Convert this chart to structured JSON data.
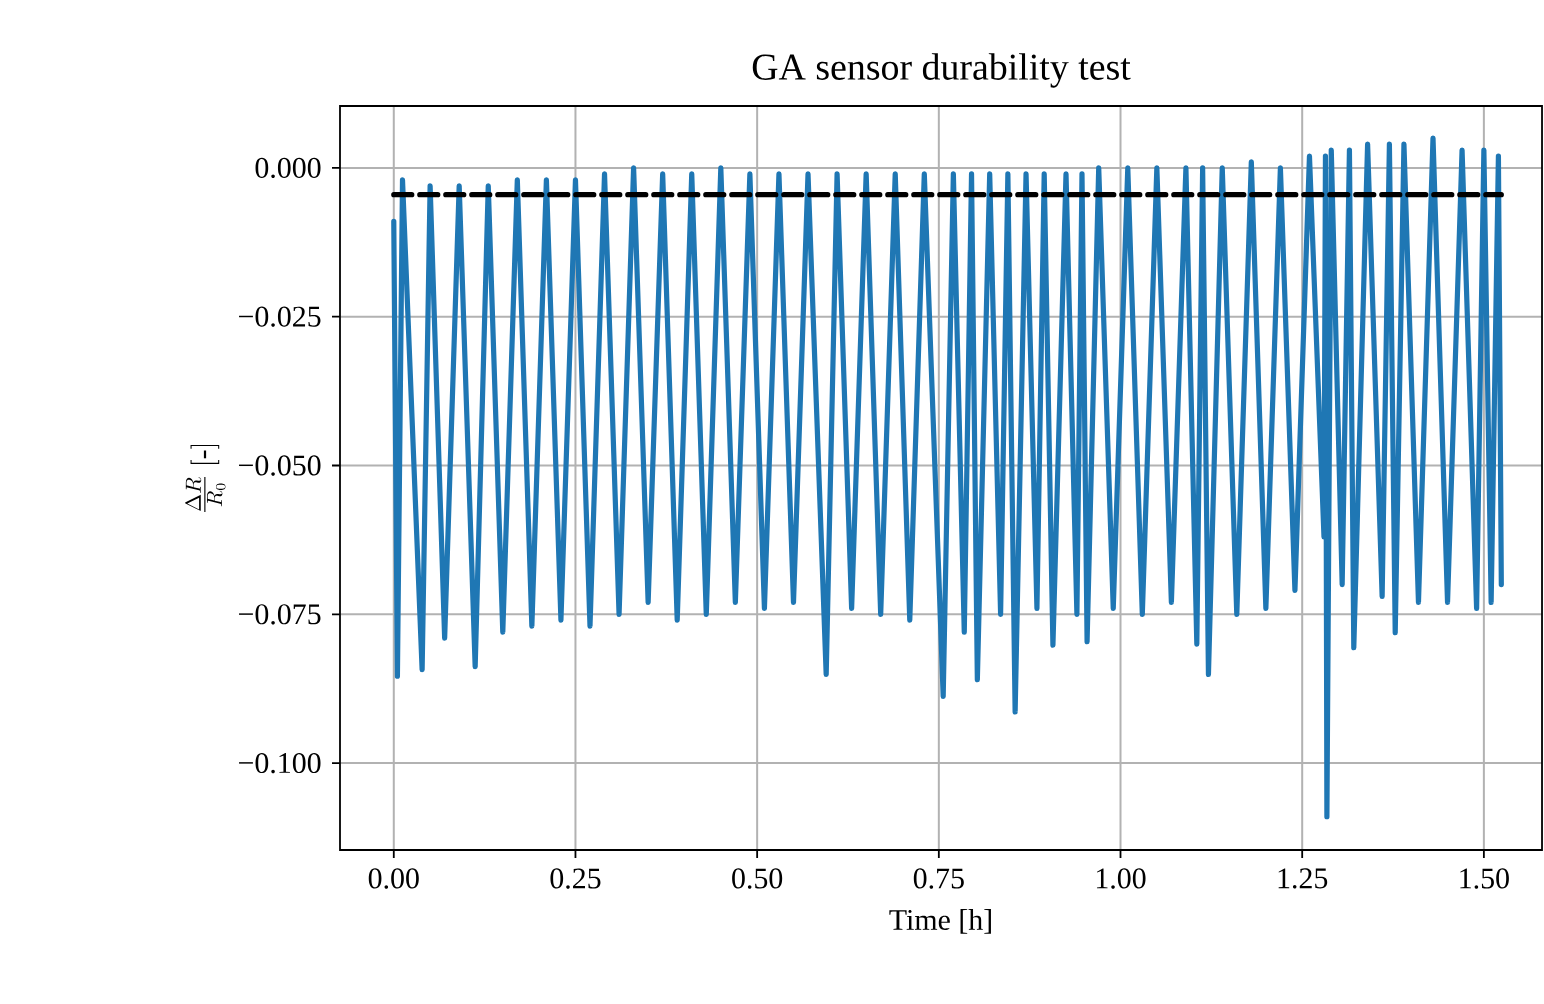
{
  "chart_data": {
    "type": "line",
    "title": "GA sensor durability test",
    "xlabel": "Time [h]",
    "ylabel": "\\frac{\\Delta R}{R_0}\\ [\\text{-}]",
    "xlim": [
      -0.074,
      1.58
    ],
    "ylim": [
      -0.1146,
      0.0104
    ],
    "xticks": [
      {
        "value": 0,
        "label": "0.00"
      },
      {
        "value": 0.25,
        "label": "0.25"
      },
      {
        "value": 0.5,
        "label": "0.50"
      },
      {
        "value": 0.75,
        "label": "0.75"
      },
      {
        "value": 1.0,
        "label": "1.00"
      },
      {
        "value": 1.25,
        "label": "1.25"
      },
      {
        "value": 1.5,
        "label": "1.50"
      }
    ],
    "yticks": [
      {
        "value": 0,
        "label": "0.000"
      },
      {
        "value": -0.025,
        "label": "−0.025"
      },
      {
        "value": -0.05,
        "label": "−0.050"
      },
      {
        "value": -0.075,
        "label": "−0.075"
      },
      {
        "value": -0.1,
        "label": "−0.100"
      }
    ],
    "grid": true,
    "marker": "none",
    "series": [
      {
        "color": "#1f77b4",
        "line_style": "solid",
        "x": [
          0.0,
          0.005,
          0.012,
          0.039,
          0.05,
          0.07,
          0.09,
          0.112,
          0.13,
          0.15,
          0.17,
          0.19,
          0.21,
          0.23,
          0.25,
          0.27,
          0.29,
          0.31,
          0.33,
          0.35,
          0.37,
          0.39,
          0.41,
          0.43,
          0.45,
          0.47,
          0.49,
          0.51,
          0.53,
          0.55,
          0.57,
          0.595,
          0.61,
          0.63,
          0.65,
          0.67,
          0.69,
          0.71,
          0.73,
          0.756,
          0.77,
          0.785,
          0.795,
          0.803,
          0.82,
          0.835,
          0.845,
          0.855,
          0.87,
          0.885,
          0.895,
          0.907,
          0.925,
          0.94,
          0.947,
          0.954,
          0.97,
          0.99,
          1.01,
          1.03,
          1.05,
          1.07,
          1.09,
          1.105,
          1.113,
          1.121,
          1.14,
          1.16,
          1.18,
          1.2,
          1.22,
          1.24,
          1.26,
          1.28,
          1.282,
          1.284,
          1.29,
          1.305,
          1.315,
          1.321,
          1.34,
          1.36,
          1.37,
          1.378,
          1.39,
          1.41,
          1.43,
          1.45,
          1.47,
          1.49,
          1.5,
          1.51,
          1.52,
          1.524
        ],
        "values": [
          -0.009,
          -0.0854,
          -0.002,
          -0.0843,
          -0.003,
          -0.079,
          -0.003,
          -0.0838,
          -0.003,
          -0.078,
          -0.002,
          -0.077,
          -0.002,
          -0.076,
          -0.002,
          -0.077,
          -0.001,
          -0.075,
          0.0,
          -0.073,
          -0.001,
          -0.076,
          -0.001,
          -0.075,
          0.0,
          -0.073,
          -0.001,
          -0.074,
          -0.001,
          -0.073,
          -0.001,
          -0.0851,
          -0.001,
          -0.074,
          -0.001,
          -0.075,
          -0.001,
          -0.076,
          -0.001,
          -0.0888,
          -0.001,
          -0.078,
          -0.001,
          -0.086,
          -0.001,
          -0.075,
          -0.001,
          -0.0914,
          -0.001,
          -0.074,
          -0.001,
          -0.0802,
          -0.001,
          -0.075,
          -0.001,
          -0.0796,
          0.0,
          -0.074,
          0.0,
          -0.075,
          0.0,
          -0.073,
          0.0,
          -0.08,
          0.0,
          -0.0851,
          0.0,
          -0.075,
          0.001,
          -0.074,
          0.0,
          -0.071,
          0.002,
          -0.062,
          0.002,
          -0.109,
          0.003,
          -0.07,
          0.003,
          -0.0806,
          0.004,
          -0.072,
          0.004,
          -0.0781,
          0.004,
          -0.073,
          0.005,
          -0.073,
          0.003,
          -0.074,
          0.003,
          -0.073,
          0.002,
          -0.07
        ]
      },
      {
        "color": "#000000",
        "line_style": "dashed",
        "x": [
          0.0,
          1.524
        ],
        "values": [
          -0.0045,
          -0.0045
        ]
      }
    ]
  }
}
